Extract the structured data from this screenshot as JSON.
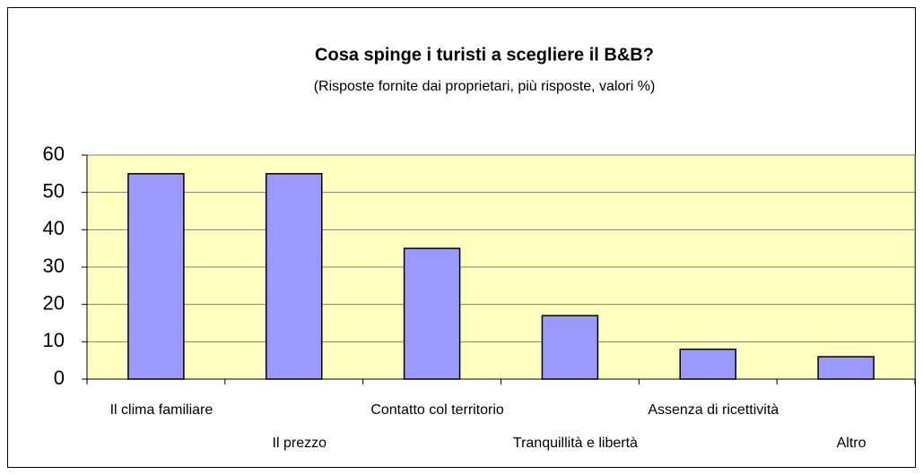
{
  "chart_data": {
    "type": "bar",
    "title": "Cosa spinge i turisti a scegliere il B&B?",
    "subtitle": "(Risposte fornite dai proprietari, più risposte, valori %)",
    "categories": [
      "Il clima familiare",
      "Il prezzo",
      "Contatto col territorio",
      "Tranquillità e libertà",
      "Assenza di ricettività",
      "Altro"
    ],
    "values": [
      55,
      55,
      35,
      17,
      8,
      6
    ],
    "color": "#9999ff",
    "ylim": [
      0,
      60
    ],
    "yticks": [
      0,
      10,
      20,
      30,
      40,
      50,
      60
    ],
    "grid": true
  }
}
